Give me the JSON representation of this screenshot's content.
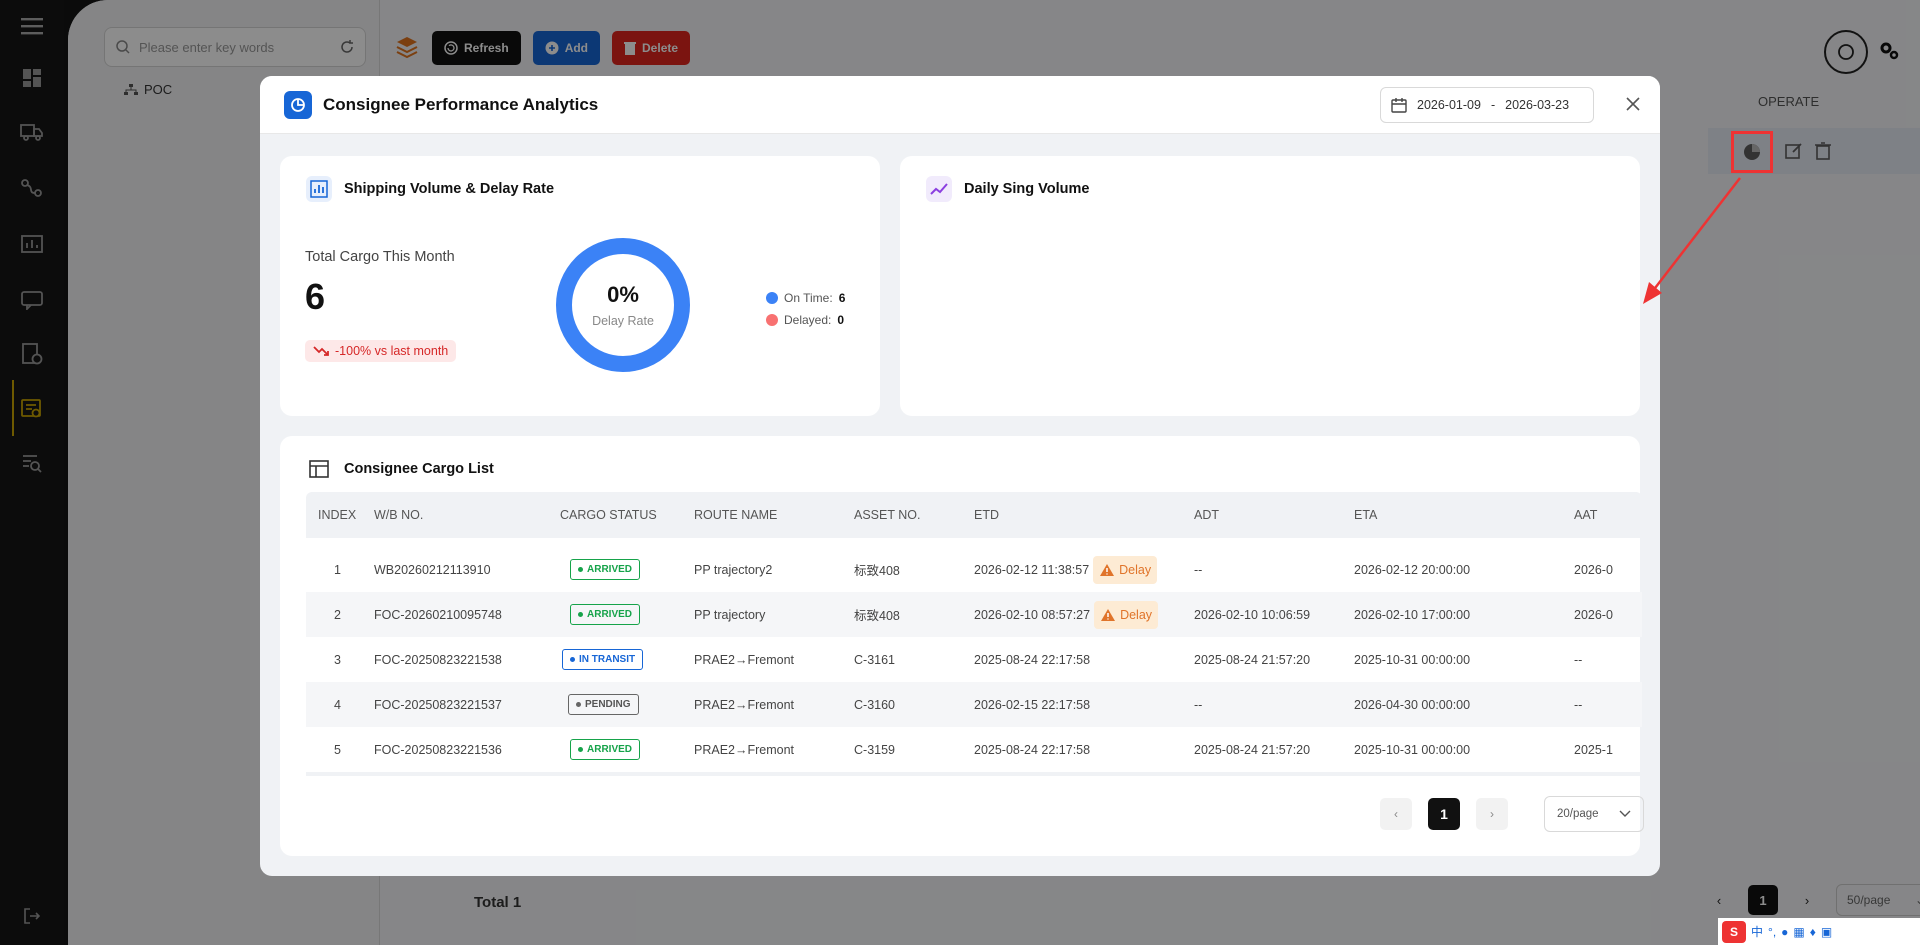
{
  "background": {
    "search_placeholder": "Please enter key words",
    "tree_root": "POC",
    "toolbar": {
      "refresh": "Refresh",
      "add": "Add",
      "delete": "Delete"
    },
    "table_header_operate": "OPERATE",
    "footer_total": "Total 1",
    "footer_page": "1",
    "footer_page_size": "50/page"
  },
  "modal": {
    "title": "Consignee Performance Analytics",
    "date_start": "2026-01-09",
    "date_sep": "-",
    "date_end": "2026-03-23",
    "shipping_card": {
      "title": "Shipping Volume & Delay Rate",
      "total_label": "Total Cargo This Month",
      "total_value": "6",
      "trend_text": "-100% vs last month",
      "donut_percent": "0%",
      "donut_label": "Delay Rate",
      "delay_rate_fraction": 0,
      "legend": [
        {
          "label": "On Time:",
          "value": "6",
          "color": "#3b82f6"
        },
        {
          "label": "Delayed:",
          "value": "0",
          "color": "#f87171"
        }
      ]
    },
    "daily_card": {
      "title": "Daily Sing Volume"
    },
    "cargo_list": {
      "title": "Consignee Cargo List",
      "columns": [
        "INDEX",
        "W/B NO.",
        "CARGO STATUS",
        "ROUTE NAME",
        "ASSET NO.",
        "ETD",
        "ADT",
        "ETA",
        "AAT"
      ],
      "rows": [
        {
          "index": "1",
          "wb": "WB20260212113910",
          "status": "ARRIVED",
          "status_type": "arrived",
          "route": "PP trajectory2",
          "asset": "标致408",
          "etd": "2026-02-12 11:38:57",
          "delay": "Delay",
          "adt": "--",
          "eta": "2026-02-12 20:00:00",
          "aat": "2026-0"
        },
        {
          "index": "2",
          "wb": "FOC-20260210095748",
          "status": "ARRIVED",
          "status_type": "arrived",
          "route": "PP trajectory",
          "asset": "标致408",
          "etd": "2026-02-10 08:57:27",
          "delay": "Delay",
          "adt": "2026-02-10 10:06:59",
          "eta": "2026-02-10 17:00:00",
          "aat": "2026-0"
        },
        {
          "index": "3",
          "wb": "FOC-20250823221538",
          "status": "IN TRANSIT",
          "status_type": "transit",
          "route": "PRAE2→Fremont",
          "asset": "C-3161",
          "etd": "2025-08-24 22:17:58",
          "delay": "",
          "adt": "2025-08-24 21:57:20",
          "eta": "2025-10-31 00:00:00",
          "aat": "--"
        },
        {
          "index": "4",
          "wb": "FOC-20250823221537",
          "status": "PENDING",
          "status_type": "pending",
          "route": "PRAE2→Fremont",
          "asset": "C-3160",
          "etd": "2026-02-15 22:17:58",
          "delay": "",
          "adt": "--",
          "eta": "2026-04-30 00:00:00",
          "aat": "--"
        },
        {
          "index": "5",
          "wb": "FOC-20250823221536",
          "status": "ARRIVED",
          "status_type": "arrived",
          "route": "PRAE2→Fremont",
          "asset": "C-3159",
          "etd": "2025-08-24 22:17:58",
          "delay": "",
          "adt": "2025-08-24 21:57:20",
          "eta": "2025-10-31 00:00:00",
          "aat": "2025-1"
        }
      ],
      "pager": {
        "current": "1",
        "page_size": "20/page"
      }
    }
  },
  "ime": {
    "label": "中"
  }
}
